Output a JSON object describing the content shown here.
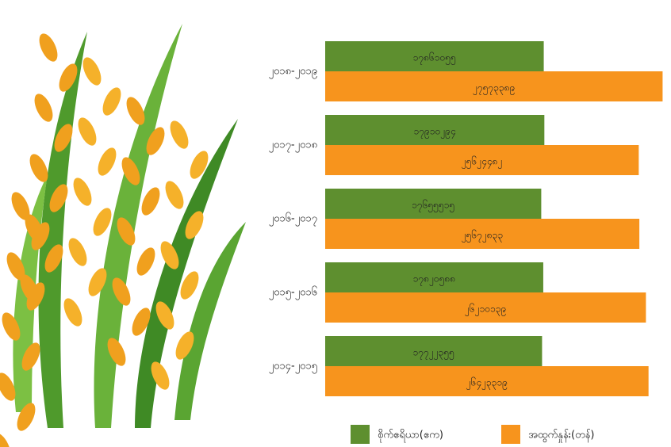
{
  "chart_data": {
    "type": "bar",
    "orientation": "horizontal",
    "categories": [
      "၂၀၁၈-၂၀၁၉",
      "၂၀၁၇-၂၀၁၈",
      "၂၀၁၆-၂၀၁၇",
      "၂၀၁၅-၂၀၁၆",
      "၂၀၁၄-၂၀၁၅"
    ],
    "series": [
      {
        "name": "စိုက်ဧရိယာ(ဧက)",
        "color": "#5e8f2f",
        "values": [
          17861055,
          17910294,
          17655515,
          17820588,
          17722355
        ],
        "value_labels": [
          "၁၇၈၆၁၀၅၅",
          "၁၇၉၁၀၂၉၄",
          "၁၇၆၅၅၅၁၅",
          "၁၇၈၂၀၅၈၈",
          "၁၇၇၂၂၃၅၅"
        ]
      },
      {
        "name": "အထွက်နှုန်း(တန်)",
        "color": "#f7941d",
        "values": [
          27573389,
          25624482,
          25672833,
          26210139,
          26423319
        ],
        "value_labels": [
          "၂၇၅၇၃၃၈၉",
          "၂၅၆၂၄၄၈၂",
          "၂၅၆၇၂၈၃၃",
          "၂၆၂၁၀၁၃၉",
          "၂၆၄၂၃၃၁၉"
        ]
      }
    ],
    "xlim": [
      0,
      28000000
    ],
    "legend": "bottom"
  }
}
